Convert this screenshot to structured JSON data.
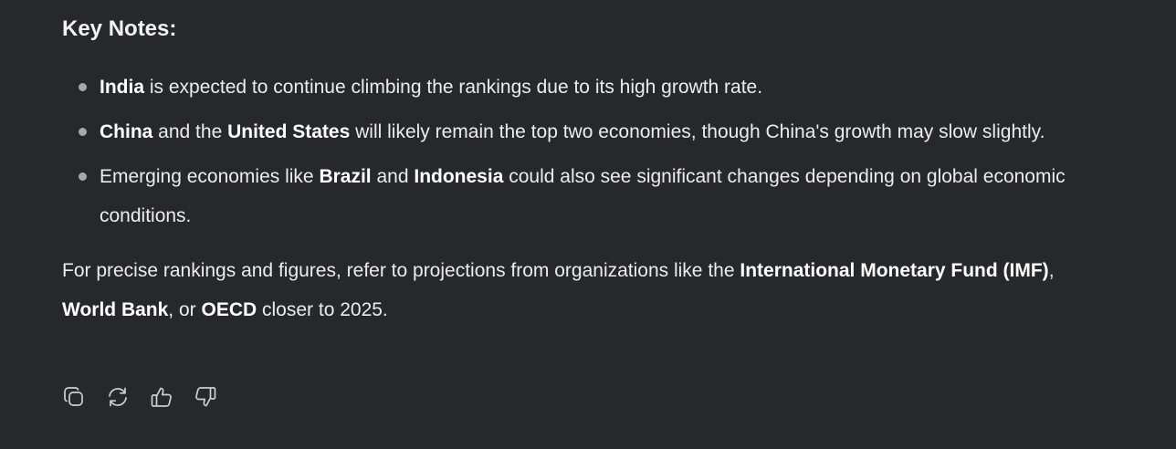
{
  "heading": "Key Notes:",
  "bullets": [
    {
      "b1": "India",
      "t1": " is expected to continue climbing the rankings due to its high growth rate."
    },
    {
      "b1": "China",
      "t1": " and the ",
      "b2": "United States",
      "t2": " will likely remain the top two economies, though China's growth may slow slightly."
    },
    {
      "t0": "Emerging economies like ",
      "b1": "Brazil",
      "t1": " and ",
      "b2": "Indonesia",
      "t2": " could also see significant changes depending on global economic conditions."
    }
  ],
  "footer": {
    "t0": "For precise rankings and figures, refer to projections from organizations like the ",
    "b1": "International Monetary Fund (IMF)",
    "t1": ", ",
    "b2": "World Bank",
    "t2": ", or ",
    "b3": "OECD",
    "t3": " closer to 2025."
  },
  "actions": {
    "copy_icon": "copy-icon",
    "regenerate_icon": "refresh-icon",
    "like_icon": "thumbs-up-icon",
    "dislike_icon": "thumbs-down-icon"
  },
  "colors": {
    "background": "#27282c",
    "text": "#ececec",
    "bullet": "#a8a8a8",
    "icon": "#cfcfcf"
  }
}
